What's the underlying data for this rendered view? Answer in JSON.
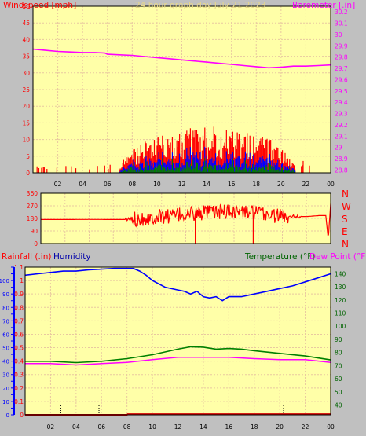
{
  "page": {
    "title": "24 hour graph day   July 21 2023"
  },
  "colors": {
    "background": "#C0C0C0",
    "plot_bg": "#FFFFA8",
    "grid": "#E8C8A0",
    "title": "#E8D888",
    "red": "#FF0000",
    "green": "#008000",
    "blue": "#0000FF",
    "magenta": "#FF00FF",
    "dark_green": "#006400",
    "dark_blue": "#0000AA",
    "dark_red": "#D00000"
  },
  "chart_data": [
    {
      "id": "wind-barometer",
      "type": "line",
      "title": "24 hour graph day   July 21 2023",
      "left_label": "Windspeed [mph]",
      "right_label": "Barometer [.in]",
      "x_ticks": [
        "02",
        "04",
        "06",
        "08",
        "10",
        "12",
        "14",
        "16",
        "18",
        "20",
        "22",
        "00"
      ],
      "left_ticks": [
        "0",
        "5",
        "10",
        "15",
        "20",
        "25",
        "30",
        "35",
        "40",
        "45",
        "50"
      ],
      "left_ylim": [
        0,
        50
      ],
      "right_ticks": [
        "28.8",
        "28.9",
        "29",
        "29.1",
        "29.2",
        "29.3",
        "29.4",
        "29.5",
        "29.6",
        "29.7",
        "29.8",
        "29.9",
        "30",
        "30.1",
        "30.2"
      ],
      "right_ylim": [
        28.775,
        30.25
      ],
      "xlim": [
        0,
        24
      ],
      "grid": true,
      "gust_profile": [
        [
          0,
          1.2
        ],
        [
          6.5,
          1.5
        ],
        [
          7,
          3
        ],
        [
          8,
          6
        ],
        [
          9,
          7.5
        ],
        [
          10,
          8.5
        ],
        [
          11,
          9.5
        ],
        [
          12,
          10.5
        ],
        [
          13,
          11
        ],
        [
          14,
          11
        ],
        [
          15,
          11.2
        ],
        [
          16,
          11.5
        ],
        [
          17,
          11
        ],
        [
          18,
          10
        ],
        [
          19,
          8.5
        ],
        [
          20,
          6.5
        ],
        [
          20.7,
          3.5
        ],
        [
          21.3,
          1.5
        ],
        [
          24,
          1.2
        ]
      ],
      "series": [
        {
          "name": "Barometer",
          "axis": "right",
          "color": "#FF00FF",
          "x": [
            0,
            1,
            2,
            3,
            4,
            5,
            5.8,
            6,
            7,
            8,
            9,
            10,
            11,
            12,
            13,
            14,
            15,
            16,
            17,
            18,
            19,
            20,
            21,
            22,
            23,
            24
          ],
          "y": [
            29.87,
            29.86,
            29.85,
            29.845,
            29.84,
            29.84,
            29.835,
            29.825,
            29.82,
            29.815,
            29.805,
            29.795,
            29.785,
            29.775,
            29.765,
            29.755,
            29.745,
            29.735,
            29.725,
            29.715,
            29.705,
            29.71,
            29.72,
            29.72,
            29.725,
            29.73
          ]
        }
      ]
    },
    {
      "id": "wind-direction",
      "type": "line",
      "left_ticks": [
        "0",
        "90",
        "180",
        "270",
        "360"
      ],
      "ylim": [
        0,
        360
      ],
      "right_labels": [
        "N",
        "W",
        "S",
        "E",
        "N"
      ],
      "x_ticks": [],
      "xlim": [
        0,
        24
      ],
      "grid": true,
      "series": [
        {
          "name": "",
          "color": "#FF0000",
          "x": [
            0,
            2,
            4,
            6,
            7,
            8,
            9,
            10,
            11,
            12,
            13,
            14,
            15,
            16,
            17,
            18,
            19,
            20,
            21,
            22,
            23,
            23.6,
            23.8,
            24
          ],
          "y": [
            172,
            172,
            173,
            172,
            172,
            178,
            185,
            195,
            200,
            210,
            215,
            222,
            230,
            232,
            225,
            215,
            205,
            198,
            195,
            193,
            200,
            200,
            30,
            285
          ]
        }
      ]
    },
    {
      "id": "temp-humidity",
      "type": "line",
      "left_label_1": "Rainfall (.in)",
      "left_label_2": "Humidity",
      "right_label_1": "Temperature (°F)",
      "right_label_2": "Dew Point (°F)",
      "x_ticks": [
        "02",
        "04",
        "06",
        "08",
        "10",
        "12",
        "14",
        "16",
        "18",
        "20",
        "22",
        "00"
      ],
      "left_ticks": [
        "0",
        "0.1",
        "0.2",
        "0.3",
        "0.4",
        "0.5",
        "0.6",
        "0.7",
        "0.8",
        "0.9",
        "1",
        "1.1"
      ],
      "left_ylim": [
        0,
        1.1
      ],
      "humidity_ticks": [
        "0",
        "10",
        "20",
        "30",
        "40",
        "50",
        "60",
        "70",
        "80",
        "90",
        "100"
      ],
      "humidity_ylim": [
        0,
        110
      ],
      "right_ticks": [
        "40",
        "50",
        "60",
        "70",
        "80",
        "90",
        "100",
        "110",
        "120",
        "130",
        "140"
      ],
      "right_ylim": [
        32.5,
        145
      ],
      "xlim": [
        0,
        24
      ],
      "grid": true,
      "series": [
        {
          "name": "Humidity",
          "axis": "left",
          "color": "#0000FF",
          "x": [
            0,
            1,
            2,
            3,
            4,
            5,
            6,
            7,
            8,
            8.5,
            9,
            9.5,
            10,
            11,
            12,
            12.5,
            13,
            13.5,
            14,
            14.5,
            15,
            15.5,
            16,
            17,
            18,
            19,
            20,
            21,
            22,
            23,
            24
          ],
          "y": [
            1.04,
            1.05,
            1.06,
            1.07,
            1.07,
            1.08,
            1.085,
            1.09,
            1.09,
            1.09,
            1.07,
            1.04,
            1.0,
            0.95,
            0.93,
            0.92,
            0.9,
            0.92,
            0.88,
            0.87,
            0.88,
            0.85,
            0.88,
            0.88,
            0.9,
            0.92,
            0.94,
            0.96,
            0.99,
            1.02,
            1.05
          ]
        },
        {
          "name": "Temperature",
          "axis": "right",
          "color": "#008000",
          "x": [
            0,
            2,
            4,
            6,
            8,
            10,
            12,
            13,
            14,
            15,
            16,
            17,
            18,
            20,
            22,
            24
          ],
          "y": [
            73.3,
            73.3,
            72.3,
            73.3,
            75.3,
            78.3,
            82.5,
            84.3,
            84,
            82.5,
            83,
            82.5,
            81.3,
            79.3,
            77.3,
            74.3
          ]
        },
        {
          "name": "Dew Point",
          "axis": "right",
          "color": "#FF00FF",
          "x": [
            0,
            2,
            4,
            6,
            8,
            9,
            10,
            12,
            14,
            16,
            18,
            20,
            22,
            24
          ],
          "y": [
            71.5,
            71.5,
            70.5,
            71.5,
            72.5,
            73.5,
            74.5,
            76.3,
            76.3,
            76.3,
            75.3,
            74.5,
            74.5,
            72.5
          ]
        },
        {
          "name": "Rainfall",
          "axis": "left",
          "color": "#D00000",
          "x": [
            0,
            8,
            8.05,
            24
          ],
          "y": [
            0,
            0,
            0.005,
            0.005
          ]
        }
      ]
    }
  ]
}
